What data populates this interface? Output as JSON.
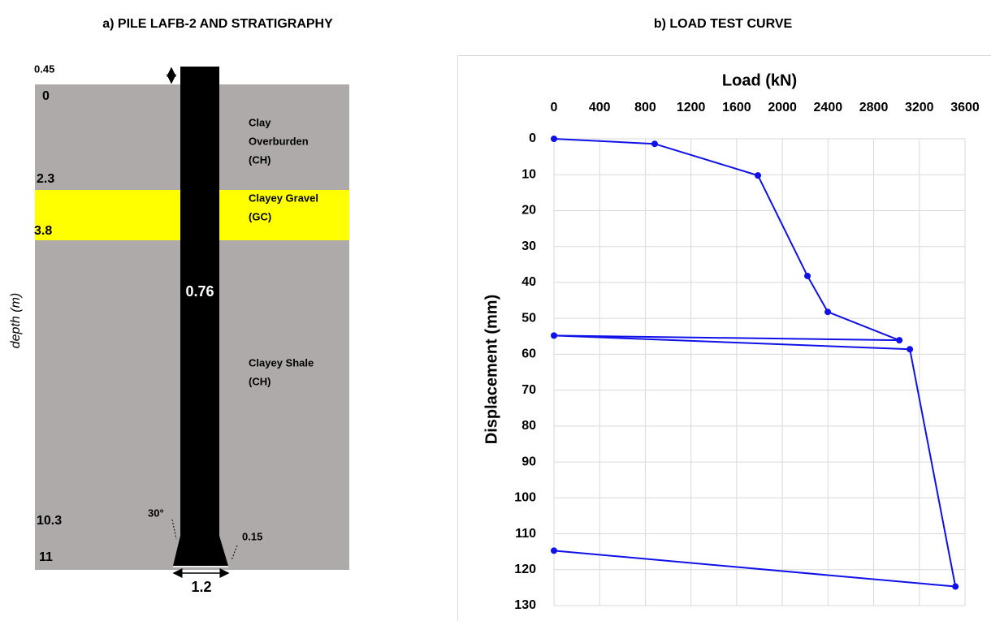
{
  "diagram": {
    "title": "a) PILE LAFB-2 AND STRATIGRAPHY",
    "axis_label": "depth (m)",
    "head_height": "0.45",
    "depths": [
      "0",
      "2.3",
      "3.8",
      "10.3",
      "11"
    ],
    "layers": [
      {
        "lines": [
          "Clay",
          "Overburden",
          "(CH)"
        ]
      },
      {
        "lines": [
          "Clayey Gravel",
          "(GC)"
        ]
      },
      {
        "lines": [
          "Clayey Shale",
          "(CH)"
        ]
      }
    ],
    "shaft_diameter": "0.76",
    "bell_angle": "30°",
    "bell_height": "0.15",
    "bell_diameter": "1.2"
  },
  "chart_data": {
    "type": "line",
    "title": "b) LOAD TEST CURVE",
    "x_label": "Load (kN)",
    "y_label": "Displacement (mm)",
    "x": [
      0,
      882,
      1786,
      2220,
      2398,
      3025,
      0,
      3117,
      3516,
      0
    ],
    "series": [
      {
        "color": "#1010e8",
        "values": [
          0,
          1.4,
          10.2,
          38.2,
          48.2,
          56.1,
          54.8,
          58.6,
          124.7,
          114.7
        ]
      }
    ],
    "xlim": [
      0,
      3600
    ],
    "xticks": [
      0,
      400,
      800,
      1200,
      1600,
      2000,
      2400,
      2800,
      3200,
      3600
    ],
    "ylim": [
      0,
      130
    ],
    "yticks": [
      0,
      10,
      20,
      30,
      40,
      50,
      60,
      70,
      80,
      90,
      100,
      110,
      120,
      130
    ],
    "y_inverted": true,
    "grid": true
  }
}
